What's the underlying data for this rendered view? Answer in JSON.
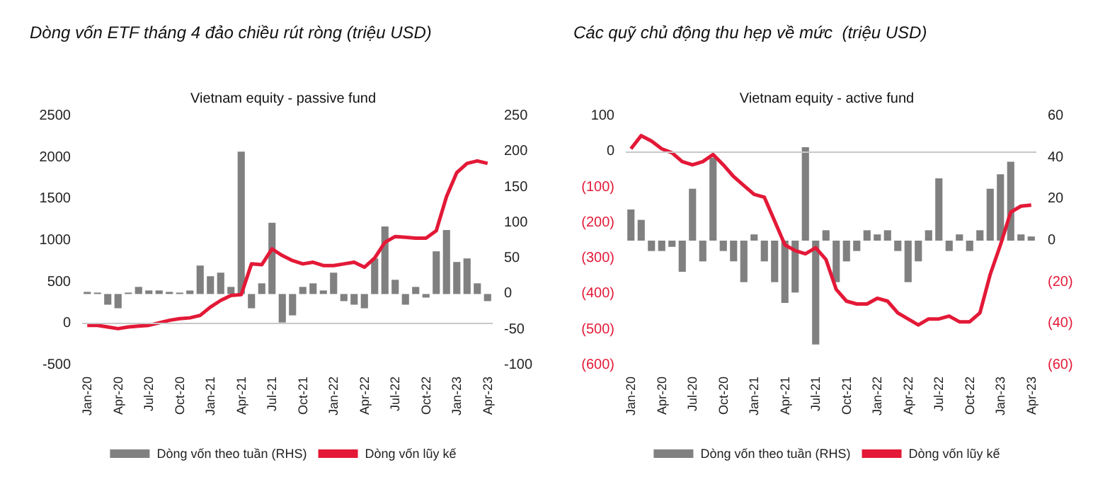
{
  "chart_data": [
    {
      "type": "bar",
      "title": "Dòng vốn ETF tháng 4 đảo chiều rút ròng (triệu USD)",
      "subtitle": "Vietnam equity - passive fund",
      "categories": [
        "Jan-20",
        null,
        null,
        "Apr-20",
        null,
        null,
        "Jul-20",
        null,
        null,
        "Oct-20",
        null,
        null,
        "Jan-21",
        null,
        null,
        "Apr-21",
        null,
        null,
        "Jul-21",
        null,
        null,
        "Oct-21",
        null,
        null,
        "Jan-22",
        null,
        null,
        "Apr-22",
        null,
        null,
        "Jul-22",
        null,
        null,
        "Oct-22",
        null,
        null,
        "Jan-23",
        null,
        null,
        "Apr-23"
      ],
      "series": [
        {
          "name": "Dòng vốn theo tuần (RHS)",
          "axis": "y2",
          "color": "#808080",
          "values": [
            3,
            2,
            -15,
            -20,
            2,
            10,
            5,
            5,
            3,
            2,
            5,
            40,
            25,
            30,
            10,
            200,
            -20,
            15,
            100,
            -40,
            -30,
            10,
            15,
            5,
            30,
            -10,
            -15,
            -20,
            50,
            95,
            20,
            -15,
            10,
            -5,
            60,
            90,
            45,
            50,
            15,
            -10
          ]
        },
        {
          "name": "Dòng vốn lũy kế",
          "type": "line",
          "axis": "y",
          "color": "#e31937",
          "values": [
            -20,
            -20,
            -40,
            -60,
            -40,
            -30,
            -20,
            10,
            40,
            60,
            70,
            100,
            200,
            280,
            340,
            350,
            720,
            710,
            900,
            820,
            760,
            720,
            740,
            700,
            700,
            720,
            740,
            680,
            790,
            980,
            1050,
            1040,
            1030,
            1030,
            1120,
            1530,
            1820,
            1930,
            1960,
            1930
          ]
        }
      ],
      "ylim": [
        -500,
        2500
      ],
      "yticks": [
        -500,
        0,
        500,
        1000,
        1500,
        2000,
        2500
      ],
      "y2lim": [
        -100,
        250
      ],
      "y2ticks": [
        -100,
        -50,
        0,
        50,
        100,
        150,
        200,
        250
      ],
      "ref_lines": [
        {
          "axis": "y",
          "value": 0,
          "color": "#c8c8c8"
        }
      ],
      "grid": false,
      "legend": "bottom",
      "marker": "none"
    },
    {
      "type": "bar",
      "title": "Các quỹ chủ động thu hẹp về mức  (triệu USD)",
      "subtitle": "Vietnam equity - active fund",
      "categories": [
        "Jan-20",
        null,
        null,
        "Apr-20",
        null,
        null,
        "Jul-20",
        null,
        null,
        "Oct-20",
        null,
        null,
        "Jan-21",
        null,
        null,
        "Apr-21",
        null,
        null,
        "Jul-21",
        null,
        null,
        "Oct-21",
        null,
        null,
        "Jan-22",
        null,
        null,
        "Apr-22",
        null,
        null,
        "Jul-22",
        null,
        null,
        "Oct-22",
        null,
        null,
        "Jan-23",
        null,
        null,
        "Apr-23"
      ],
      "series": [
        {
          "name": "Dòng vốn theo tuần (RHS)",
          "axis": "y2",
          "color": "#808080",
          "values": [
            15,
            10,
            -5,
            -5,
            -3,
            -15,
            25,
            -10,
            40,
            -5,
            -10,
            -20,
            3,
            -10,
            -20,
            -30,
            -25,
            45,
            -50,
            5,
            -20,
            -10,
            -5,
            5,
            3,
            5,
            -5,
            -20,
            -10,
            5,
            30,
            -5,
            3,
            -5,
            5,
            25,
            32,
            38,
            3,
            2
          ]
        },
        {
          "name": "Dòng vốn lũy kế",
          "type": "line",
          "axis": "y",
          "color": "#e31937",
          "values": [
            8,
            45,
            30,
            8,
            -3,
            -28,
            -37,
            -28,
            -8,
            -37,
            -70,
            -95,
            -120,
            -128,
            -195,
            -262,
            -278,
            -287,
            -270,
            -303,
            -387,
            -420,
            -428,
            -428,
            -412,
            -420,
            -453,
            -470,
            -487,
            -470,
            -470,
            -462,
            -478,
            -478,
            -453,
            -345,
            -262,
            -170,
            -153,
            -150
          ]
        }
      ],
      "ylim": [
        -600,
        100
      ],
      "yticks": [
        {
          "value": -600,
          "label": "(600)"
        },
        {
          "value": -500,
          "label": "(500)"
        },
        {
          "value": -400,
          "label": "(400)"
        },
        {
          "value": -300,
          "label": "(300)"
        },
        {
          "value": -200,
          "label": "(200)"
        },
        {
          "value": -100,
          "label": "(100)"
        },
        0,
        100
      ],
      "y2lim": [
        -60,
        60
      ],
      "y2ticks": [
        {
          "value": -60,
          "label": "(60)"
        },
        {
          "value": -40,
          "label": "(40)"
        },
        {
          "value": -20,
          "label": "(20)"
        },
        0,
        20,
        40,
        60
      ],
      "ref_lines": [
        {
          "axis": "y",
          "value": 0,
          "color": "#c8c8c8"
        }
      ],
      "grid": false,
      "legend": "bottom",
      "marker": "none"
    }
  ]
}
